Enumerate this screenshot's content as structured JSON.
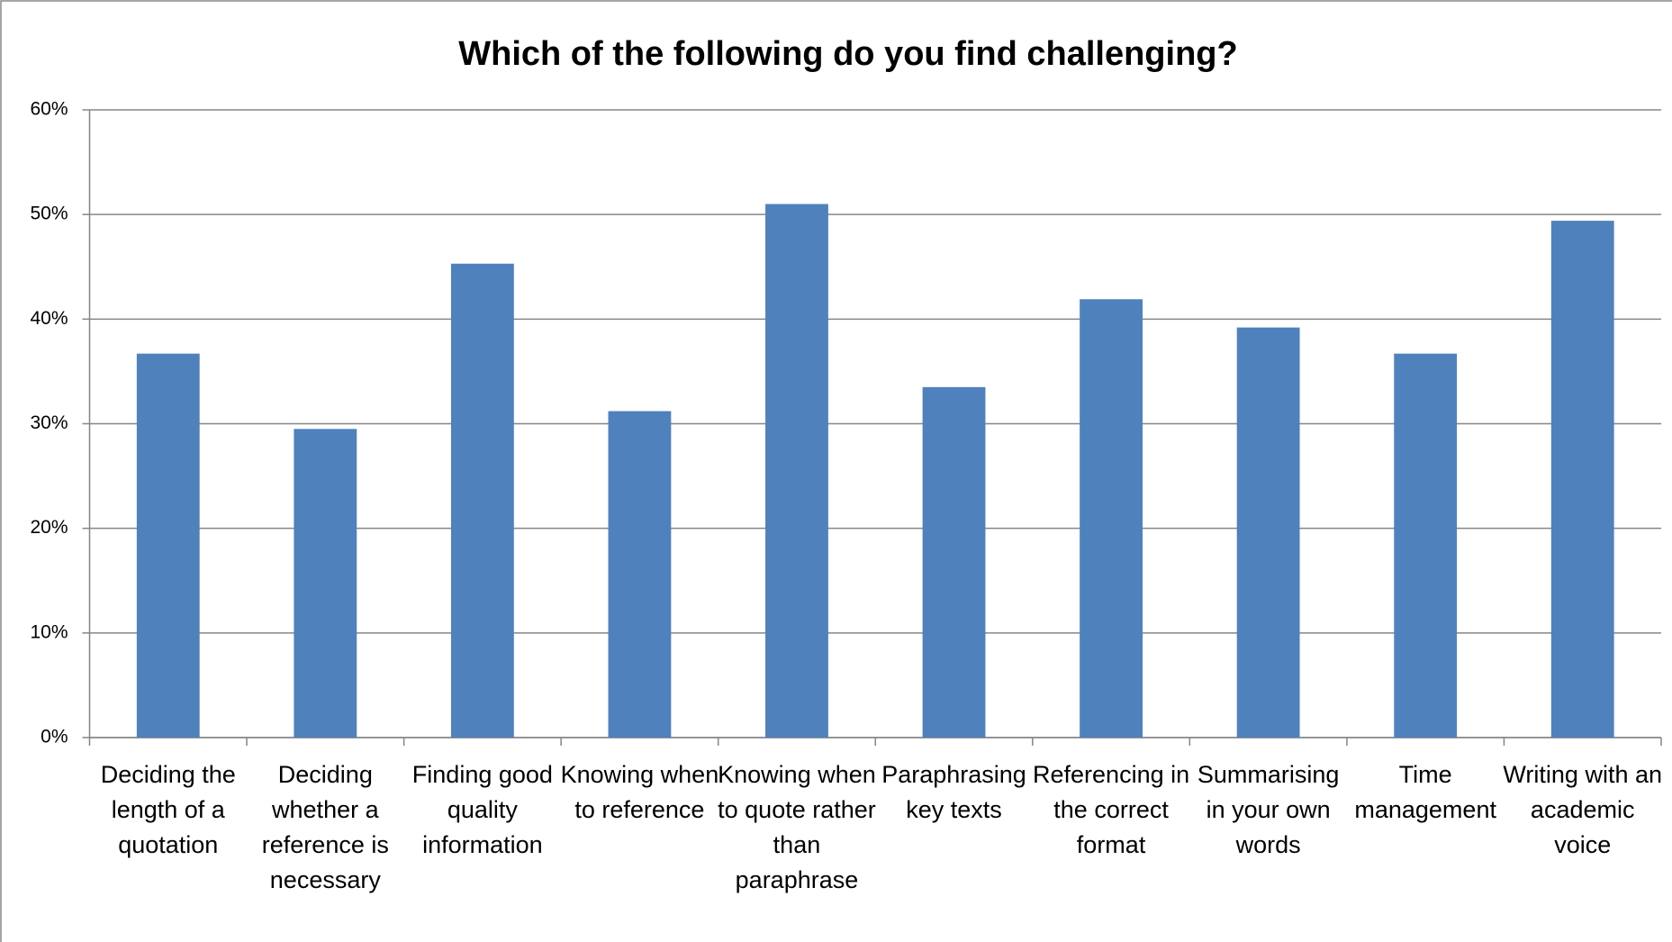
{
  "chart_data": {
    "type": "bar",
    "title": "Which of the following do you find challenging?",
    "categories": [
      "Deciding the length of a quotation",
      "Deciding whether a reference is necessary",
      "Finding good quality information",
      "Knowing when to reference",
      "Knowing when to quote rather than paraphrase",
      "Paraphrasing key texts",
      "Referencing in the correct format",
      "Summarising in your own words",
      "Time management",
      "Writing with an academic voice"
    ],
    "values": [
      36.7,
      29.5,
      45.3,
      31.2,
      51,
      33.5,
      41.9,
      39.2,
      36.7,
      49.4
    ],
    "color": "#4f81bd",
    "ylim": [
      0,
      60
    ],
    "yticks": [
      {
        "value": 0,
        "label": "0%"
      },
      {
        "value": 10,
        "label": "10%"
      },
      {
        "value": 20,
        "label": "20%"
      },
      {
        "value": 30,
        "label": "30%"
      },
      {
        "value": 40,
        "label": "40%"
      },
      {
        "value": 50,
        "label": "50%"
      },
      {
        "value": 60,
        "label": "60%"
      }
    ],
    "grid": true
  }
}
